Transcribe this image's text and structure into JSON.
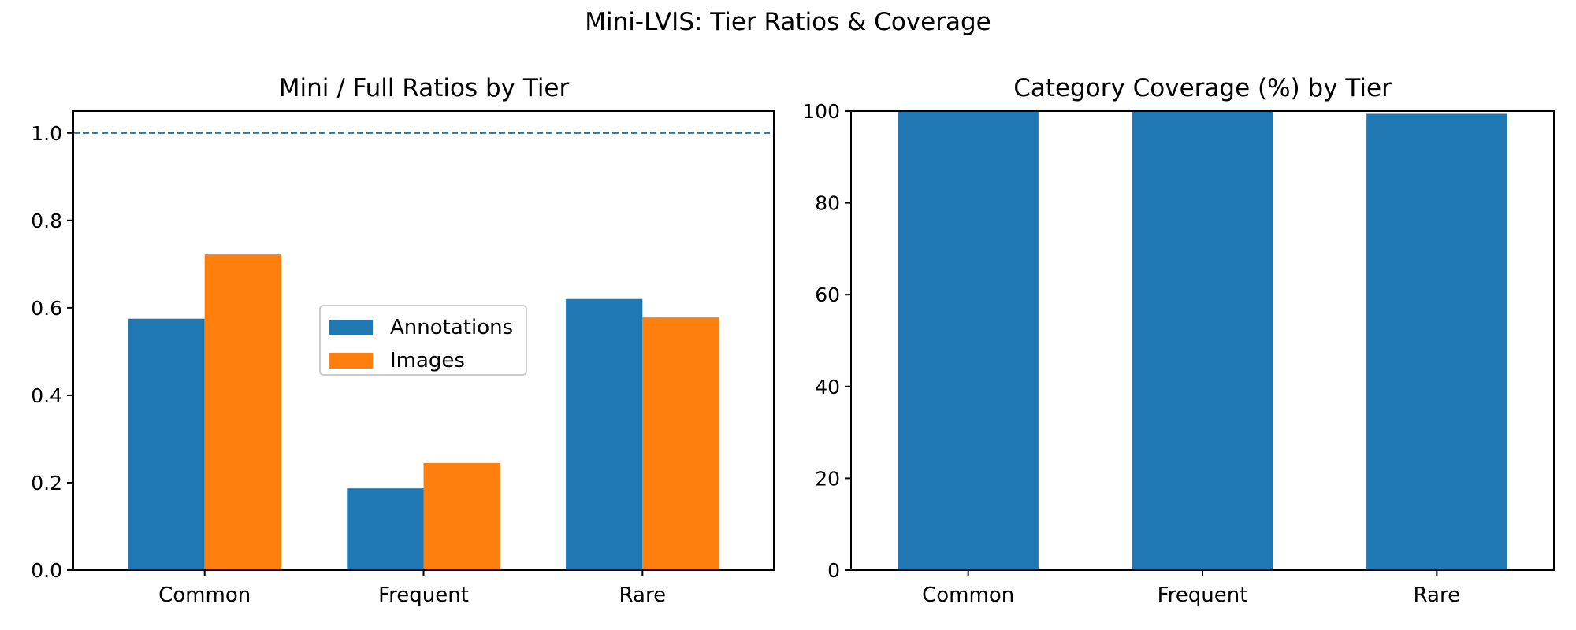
{
  "figure": {
    "title": "Mini-LVIS: Tier Ratios & Coverage"
  },
  "colors": {
    "annotations": "#1f77b4",
    "images": "#ff7f0e",
    "reference_line": "#1f77b4"
  },
  "chart_data": [
    {
      "type": "bar",
      "title": "Mini / Full Ratios by Tier",
      "categories": [
        "Common",
        "Frequent",
        "Rare"
      ],
      "series": [
        {
          "name": "Annotations",
          "values": [
            0.575,
            0.187,
            0.62
          ]
        },
        {
          "name": "Images",
          "values": [
            0.722,
            0.245,
            0.578
          ]
        }
      ],
      "ylim": [
        0,
        1.05
      ],
      "yticks": [
        "0.0",
        "0.2",
        "0.4",
        "0.6",
        "0.8",
        "1.0"
      ],
      "reference_line": {
        "y": 1.0,
        "style": "dashed"
      },
      "legend": {
        "placement": "center"
      },
      "grid": false
    },
    {
      "type": "bar",
      "title": "Category Coverage (%) by Tier",
      "categories": [
        "Common",
        "Frequent",
        "Rare"
      ],
      "values": [
        100,
        100,
        99.4
      ],
      "ylim": [
        0,
        100
      ],
      "yticks": [
        "0",
        "20",
        "40",
        "60",
        "80",
        "100"
      ],
      "grid": false
    }
  ]
}
